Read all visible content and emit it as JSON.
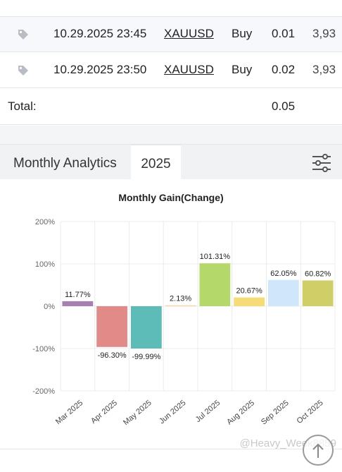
{
  "trades": [
    {
      "date": "10.29.2025 23:45",
      "symbol": "XAUUSD",
      "side": "Buy",
      "lots": "0.01",
      "price": "3,93"
    },
    {
      "date": "10.29.2025 23:50",
      "symbol": "XAUUSD",
      "side": "Buy",
      "lots": "0.02",
      "price": "3,93"
    }
  ],
  "total": {
    "label": "Total:",
    "value": "0.05"
  },
  "tabs": {
    "analytics": "Monthly Analytics",
    "year": "2025"
  },
  "watermark": "@Heavy_Week8859",
  "colors": {
    "tag_icon": "#b8bcc4",
    "grid": "#ececec"
  },
  "chart_data": {
    "type": "bar",
    "title": "Monthly Gain(Change)",
    "xlabel": "",
    "ylabel": "",
    "ylim": [
      -200,
      200
    ],
    "yticks": [
      "200%",
      "100%",
      "0%",
      "-100%",
      "-200%"
    ],
    "categories": [
      "Mar 2025",
      "Apr 2025",
      "May 2025",
      "Jun 2025",
      "Jul 2025",
      "Aug 2025",
      "Sep 2025",
      "Oct 2025"
    ],
    "values": [
      11.77,
      -96.3,
      -99.99,
      2.13,
      101.31,
      20.67,
      62.05,
      60.82
    ],
    "labels": [
      "11.77%",
      "-96.30%",
      "-99.99%",
      "2.13%",
      "101.31%",
      "20.67%",
      "62.05%",
      "60.82%"
    ],
    "colors": [
      "#a77fb1",
      "#e28a88",
      "#5ebcb8",
      "#f7d7a6",
      "#b4d869",
      "#f6db76",
      "#cfe6fb",
      "#cfce67"
    ],
    "grid": true
  }
}
